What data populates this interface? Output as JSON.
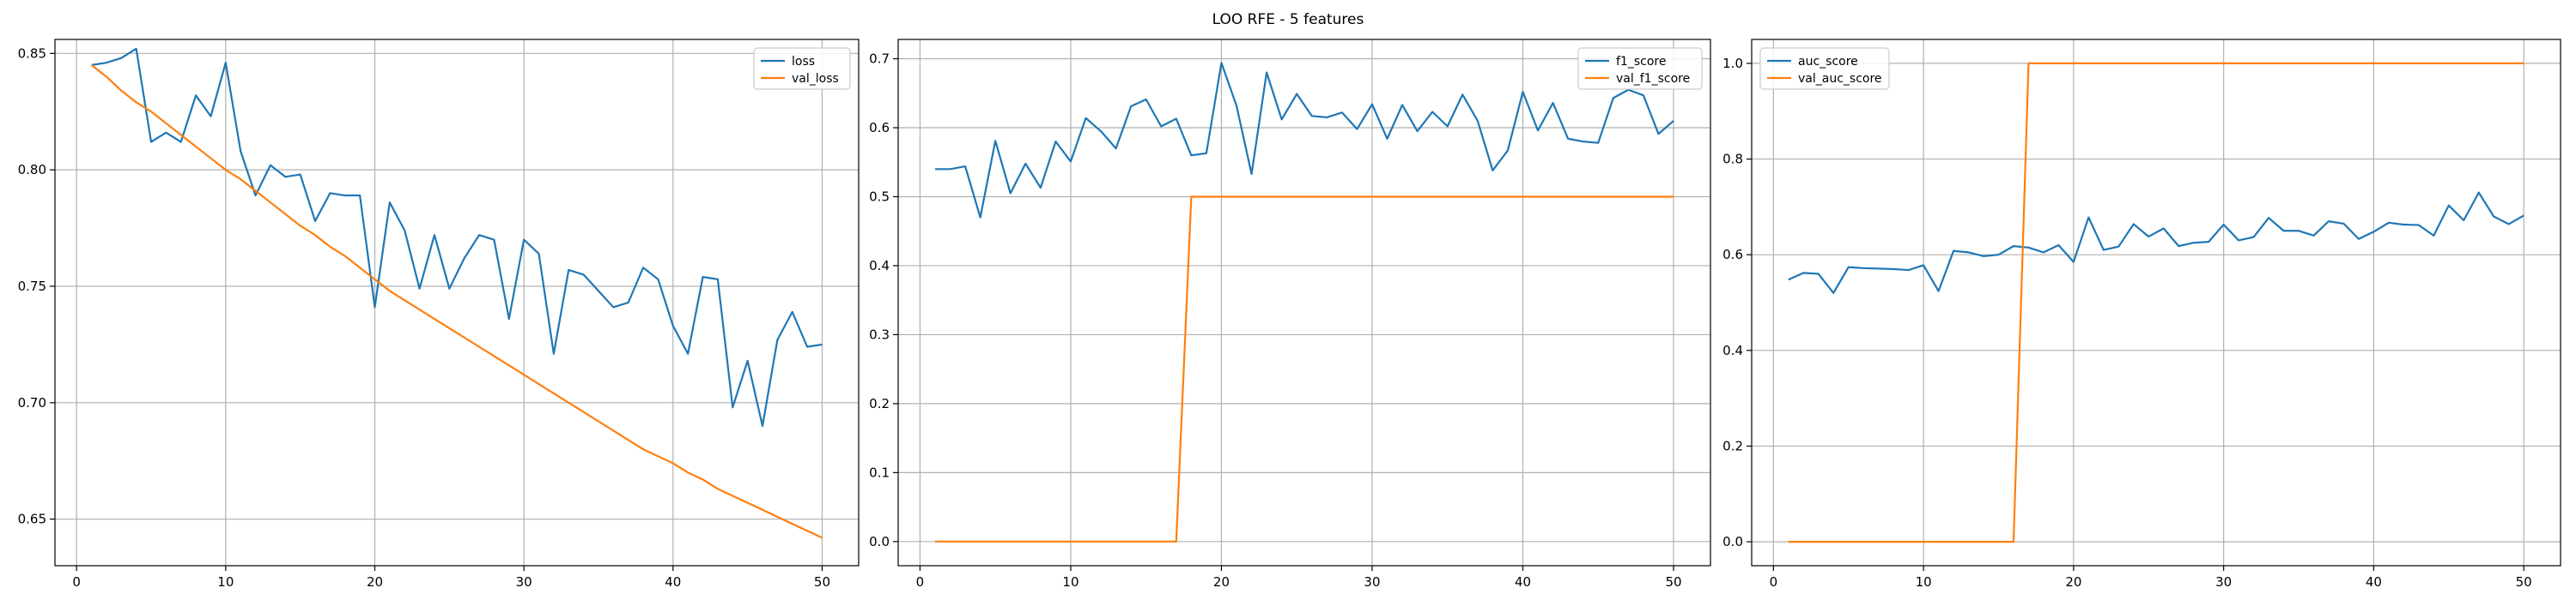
{
  "figure": {
    "suptitle": "LOO RFE - 5 features"
  },
  "colors": {
    "blue": "#1f77b4",
    "orange": "#ff7f0e",
    "grid": "#b0b0b0",
    "axes": "#000000"
  },
  "chart_data": [
    {
      "type": "line",
      "title": "",
      "xlabel": "",
      "ylabel": "",
      "xlim": [
        -1.45,
        52.45
      ],
      "ylim": [
        0.63,
        0.856
      ],
      "xticks": [
        0,
        10,
        20,
        30,
        40,
        50
      ],
      "yticks": [
        0.65,
        0.7,
        0.75,
        0.8,
        0.85
      ],
      "ytick_labels": [
        "0.65",
        "0.70",
        "0.75",
        "0.80",
        "0.85"
      ],
      "grid": true,
      "legend": "upper right",
      "x": [
        1,
        2,
        3,
        4,
        5,
        6,
        7,
        8,
        9,
        10,
        11,
        12,
        13,
        14,
        15,
        16,
        17,
        18,
        19,
        20,
        21,
        22,
        23,
        24,
        25,
        26,
        27,
        28,
        29,
        30,
        31,
        32,
        33,
        34,
        35,
        36,
        37,
        38,
        39,
        40,
        41,
        42,
        43,
        44,
        45,
        46,
        47,
        48,
        49,
        50
      ],
      "series": [
        {
          "name": "loss",
          "color": "#1f77b4",
          "values": [
            0.845,
            0.846,
            0.848,
            0.852,
            0.812,
            0.816,
            0.812,
            0.832,
            0.823,
            0.846,
            0.808,
            0.789,
            0.802,
            0.797,
            0.798,
            0.778,
            0.79,
            0.789,
            0.789,
            0.741,
            0.786,
            0.774,
            0.749,
            0.772,
            0.749,
            0.762,
            0.772,
            0.77,
            0.736,
            0.77,
            0.764,
            0.721,
            0.757,
            0.755,
            0.748,
            0.741,
            0.743,
            0.758,
            0.753,
            0.733,
            0.721,
            0.754,
            0.753,
            0.698,
            0.718,
            0.69,
            0.727,
            0.739,
            0.724,
            0.725
          ]
        },
        {
          "name": "val_loss",
          "color": "#ff7f0e",
          "values": [
            0.845,
            0.84,
            0.834,
            0.829,
            0.825,
            0.82,
            0.815,
            0.81,
            0.805,
            0.8,
            0.796,
            0.791,
            0.786,
            0.781,
            0.776,
            0.772,
            0.767,
            0.763,
            0.758,
            0.753,
            0.748,
            0.744,
            0.74,
            0.736,
            0.732,
            0.728,
            0.724,
            0.72,
            0.716,
            0.712,
            0.708,
            0.704,
            0.7,
            0.696,
            0.692,
            0.688,
            0.684,
            0.68,
            0.677,
            0.674,
            0.67,
            0.667,
            0.663,
            0.66,
            0.657,
            0.654,
            0.651,
            0.648,
            0.645,
            0.642
          ]
        }
      ]
    },
    {
      "type": "line",
      "title": "",
      "xlabel": "",
      "ylabel": "",
      "xlim": [
        -1.45,
        52.45
      ],
      "ylim": [
        -0.035,
        0.728
      ],
      "xticks": [
        0,
        10,
        20,
        30,
        40,
        50
      ],
      "yticks": [
        0.0,
        0.1,
        0.2,
        0.3,
        0.4,
        0.5,
        0.6,
        0.7
      ],
      "ytick_labels": [
        "0.0",
        "0.1",
        "0.2",
        "0.3",
        "0.4",
        "0.5",
        "0.6",
        "0.7"
      ],
      "grid": true,
      "legend": "upper right",
      "x": [
        1,
        2,
        3,
        4,
        5,
        6,
        7,
        8,
        9,
        10,
        11,
        12,
        13,
        14,
        15,
        16,
        17,
        18,
        19,
        20,
        21,
        22,
        23,
        24,
        25,
        26,
        27,
        28,
        29,
        30,
        31,
        32,
        33,
        34,
        35,
        36,
        37,
        38,
        39,
        40,
        41,
        42,
        43,
        44,
        45,
        46,
        47,
        48,
        49,
        50
      ],
      "series": [
        {
          "name": "f1_score",
          "color": "#1f77b4",
          "values": [
            0.54,
            0.54,
            0.544,
            0.47,
            0.581,
            0.505,
            0.548,
            0.513,
            0.58,
            0.551,
            0.614,
            0.595,
            0.57,
            0.631,
            0.641,
            0.602,
            0.613,
            0.56,
            0.563,
            0.694,
            0.632,
            0.533,
            0.68,
            0.612,
            0.649,
            0.617,
            0.615,
            0.622,
            0.598,
            0.634,
            0.584,
            0.633,
            0.595,
            0.623,
            0.602,
            0.648,
            0.61,
            0.538,
            0.567,
            0.652,
            0.596,
            0.636,
            0.584,
            0.58,
            0.578,
            0.643,
            0.655,
            0.647,
            0.591,
            0.61
          ]
        },
        {
          "name": "val_f1_score",
          "color": "#ff7f0e",
          "values": [
            0,
            0,
            0,
            0,
            0,
            0,
            0,
            0,
            0,
            0,
            0,
            0,
            0,
            0,
            0,
            0,
            0,
            0.5,
            0.5,
            0.5,
            0.5,
            0.5,
            0.5,
            0.5,
            0.5,
            0.5,
            0.5,
            0.5,
            0.5,
            0.5,
            0.5,
            0.5,
            0.5,
            0.5,
            0.5,
            0.5,
            0.5,
            0.5,
            0.5,
            0.5,
            0.5,
            0.5,
            0.5,
            0.5,
            0.5,
            0.5,
            0.5,
            0.5,
            0.5,
            0.5
          ]
        }
      ]
    },
    {
      "type": "line",
      "title": "",
      "xlabel": "",
      "ylabel": "",
      "xlim": [
        -1.45,
        52.45
      ],
      "ylim": [
        -0.05,
        1.05
      ],
      "xticks": [
        0,
        10,
        20,
        30,
        40,
        50
      ],
      "yticks": [
        0.0,
        0.2,
        0.4,
        0.6,
        0.8,
        1.0
      ],
      "ytick_labels": [
        "0.0",
        "0.2",
        "0.4",
        "0.6",
        "0.8",
        "1.0"
      ],
      "grid": true,
      "legend": "upper left",
      "x": [
        1,
        2,
        3,
        4,
        5,
        6,
        7,
        8,
        9,
        10,
        11,
        12,
        13,
        14,
        15,
        16,
        17,
        18,
        19,
        20,
        21,
        22,
        23,
        24,
        25,
        26,
        27,
        28,
        29,
        30,
        31,
        32,
        33,
        34,
        35,
        36,
        37,
        38,
        39,
        40,
        41,
        42,
        43,
        44,
        45,
        46,
        47,
        48,
        49,
        50
      ],
      "series": [
        {
          "name": "auc_score",
          "color": "#1f77b4",
          "values": [
            0.548,
            0.562,
            0.56,
            0.52,
            0.574,
            0.572,
            0.571,
            0.57,
            0.568,
            0.578,
            0.524,
            0.608,
            0.605,
            0.597,
            0.6,
            0.618,
            0.615,
            0.605,
            0.62,
            0.585,
            0.678,
            0.61,
            0.617,
            0.664,
            0.638,
            0.655,
            0.618,
            0.625,
            0.627,
            0.663,
            0.63,
            0.637,
            0.677,
            0.65,
            0.65,
            0.64,
            0.67,
            0.665,
            0.633,
            0.648,
            0.667,
            0.663,
            0.662,
            0.64,
            0.703,
            0.672,
            0.73,
            0.68,
            0.664,
            0.682
          ]
        },
        {
          "name": "val_auc_score",
          "color": "#ff7f0e",
          "values": [
            0,
            0,
            0,
            0,
            0,
            0,
            0,
            0,
            0,
            0,
            0,
            0,
            0,
            0,
            0,
            0,
            1,
            1,
            1,
            1,
            1,
            1,
            1,
            1,
            1,
            1,
            1,
            1,
            1,
            1,
            1,
            1,
            1,
            1,
            1,
            1,
            1,
            1,
            1,
            1,
            1,
            1,
            1,
            1,
            1,
            1,
            1,
            1,
            1,
            1
          ]
        }
      ]
    }
  ]
}
